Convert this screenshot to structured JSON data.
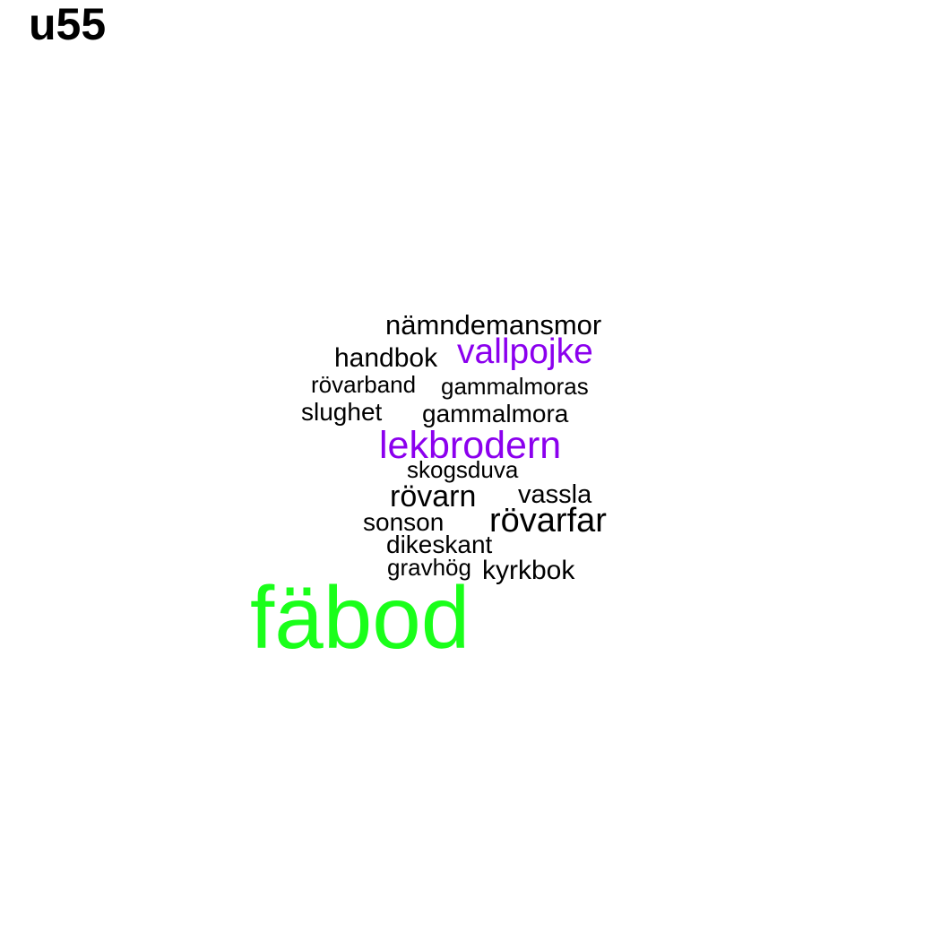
{
  "title": "u55",
  "colors": {
    "default": "#000000",
    "purple": "#8b00ee",
    "green": "#1aff1a"
  },
  "words": [
    {
      "text": "nämndemansmor",
      "color": "default"
    },
    {
      "text": "handbok",
      "color": "default"
    },
    {
      "text": "vallpojke",
      "color": "purple"
    },
    {
      "text": "rövarband",
      "color": "default"
    },
    {
      "text": "gammalmoras",
      "color": "default"
    },
    {
      "text": "slughet",
      "color": "default"
    },
    {
      "text": "gammalmora",
      "color": "default"
    },
    {
      "text": "lekbrodern",
      "color": "purple"
    },
    {
      "text": "skogsduva",
      "color": "default"
    },
    {
      "text": "rövarn",
      "color": "default"
    },
    {
      "text": "vassla",
      "color": "default"
    },
    {
      "text": "sonson",
      "color": "default"
    },
    {
      "text": "rövarfar",
      "color": "default"
    },
    {
      "text": "dikeskant",
      "color": "default"
    },
    {
      "text": "gravhög",
      "color": "default"
    },
    {
      "text": "kyrkbok",
      "color": "default"
    },
    {
      "text": "fäbod",
      "color": "green"
    }
  ]
}
